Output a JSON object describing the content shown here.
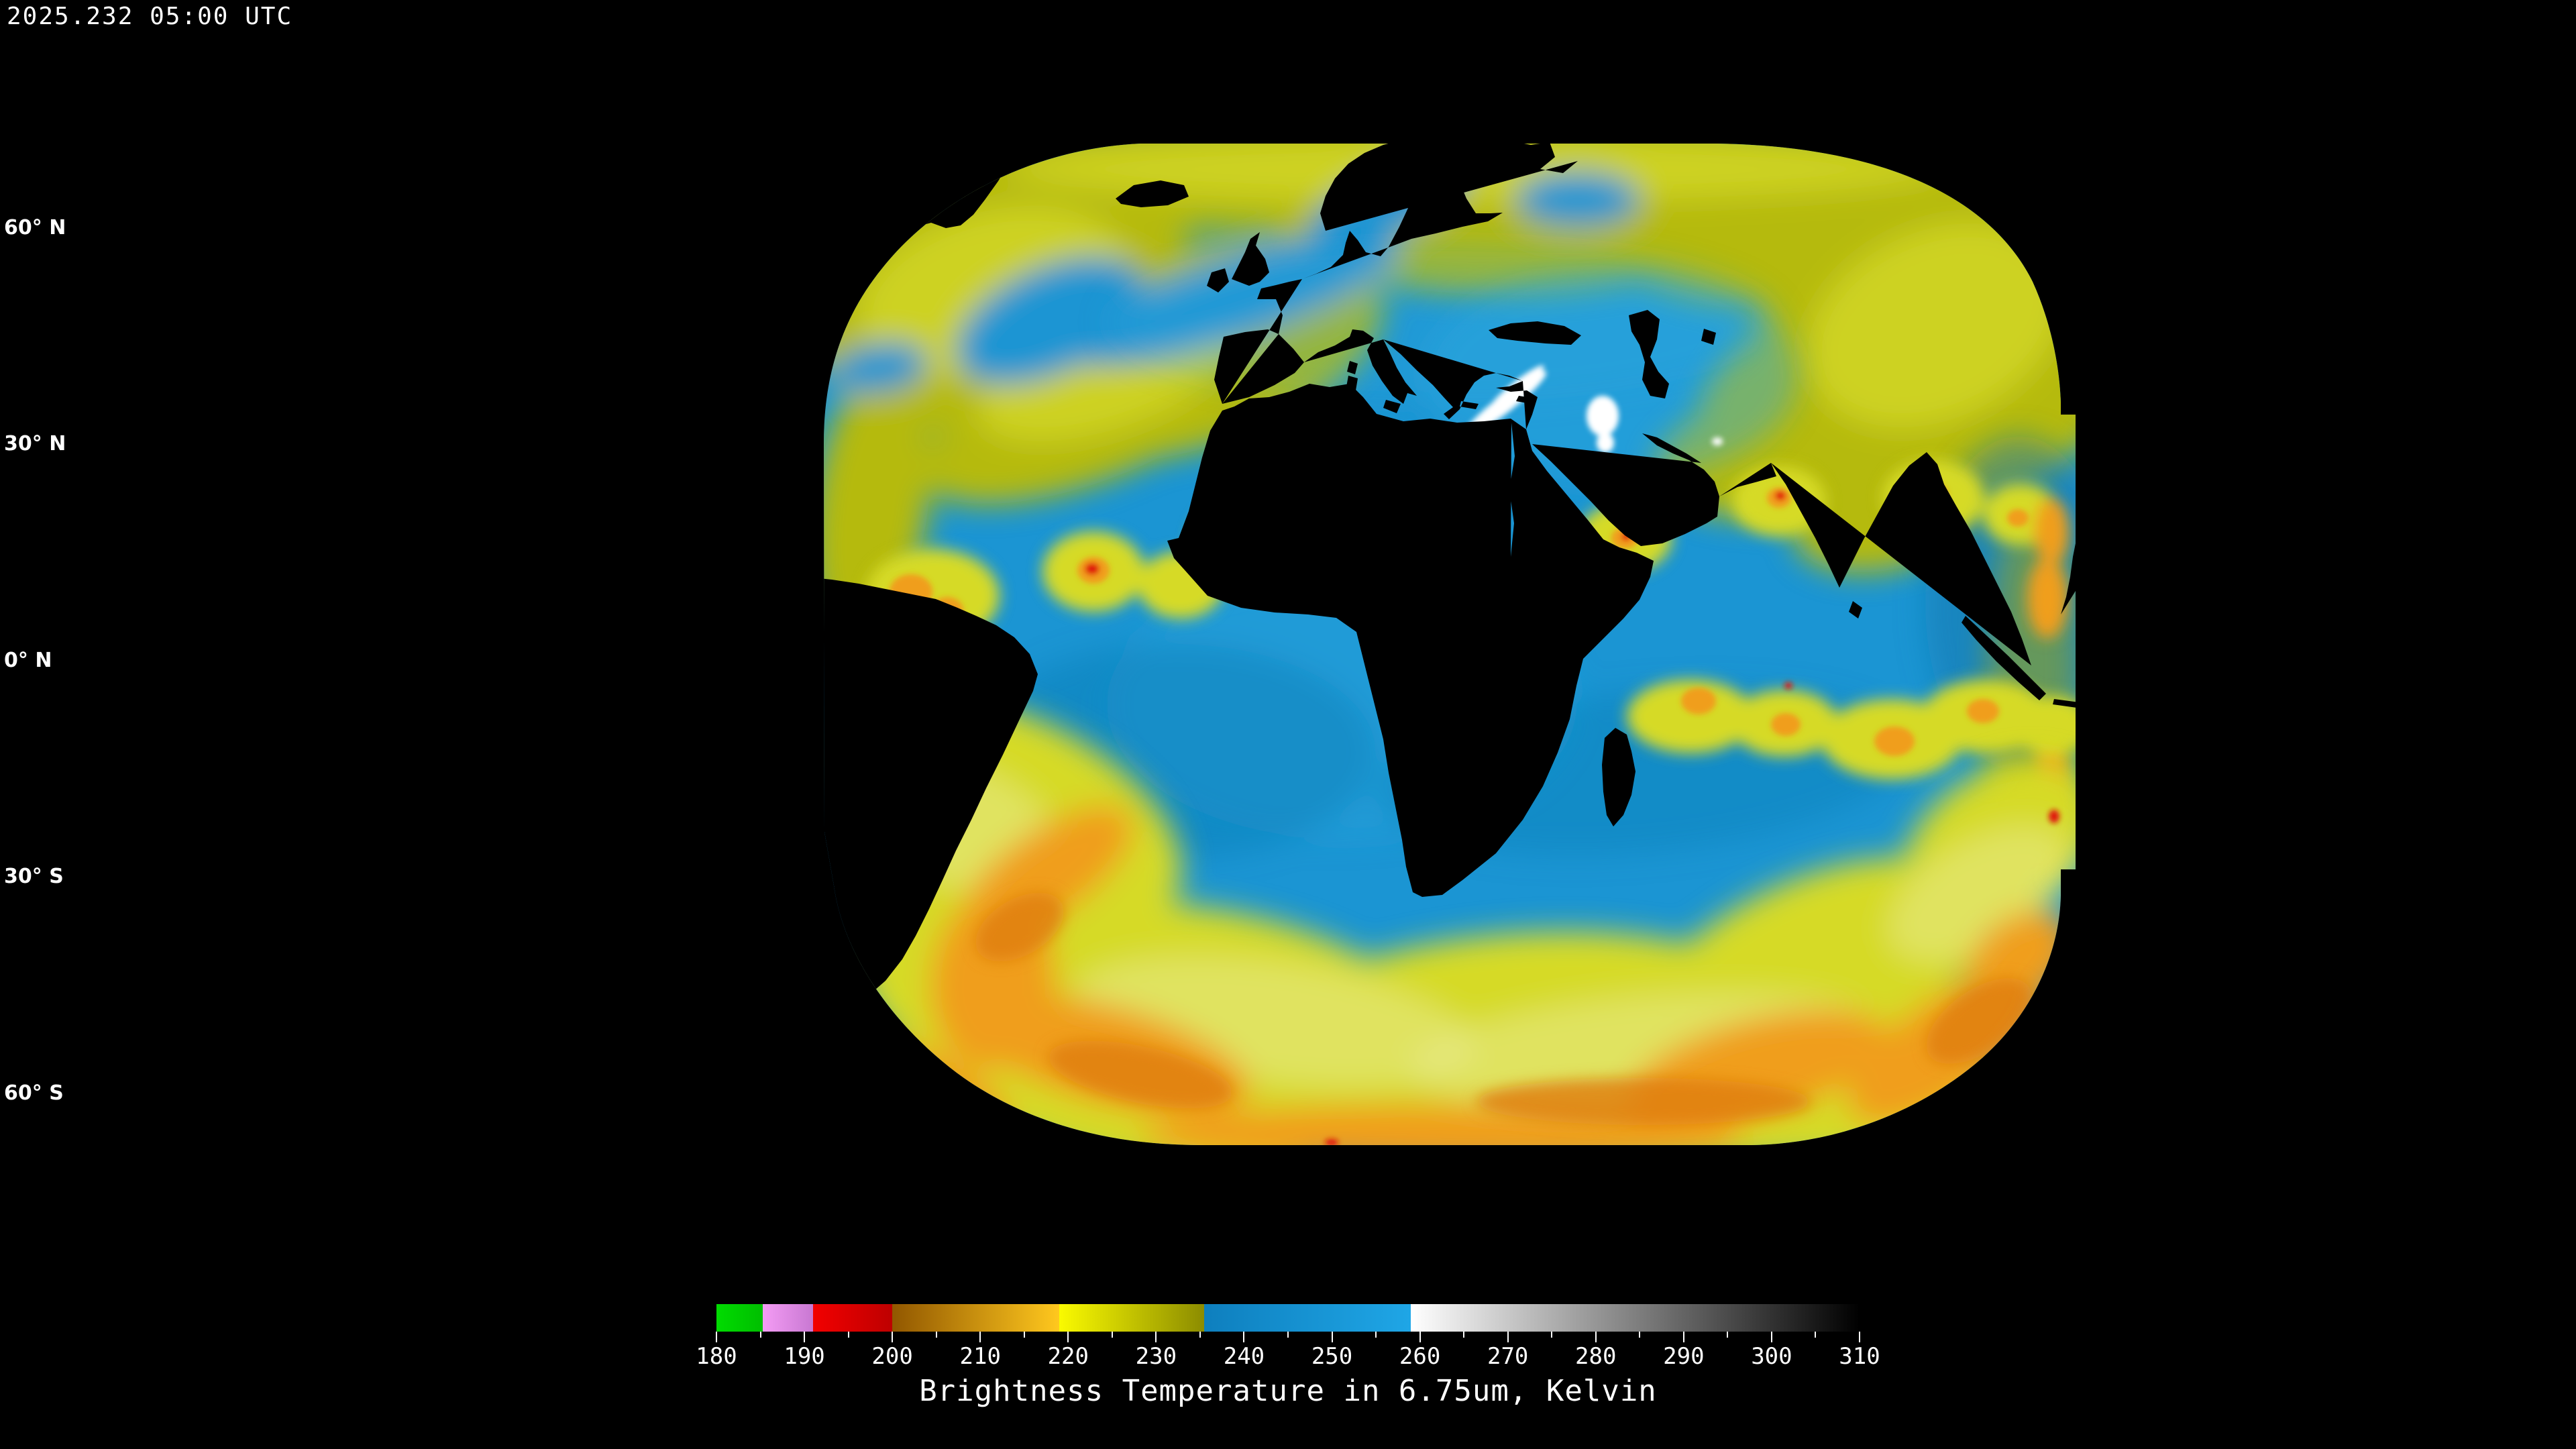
{
  "header": {
    "timestamp": "2025.232 05:00 UTC"
  },
  "map": {
    "lat_labels": [
      {
        "label": "60° N"
      },
      {
        "label": "30° N"
      },
      {
        "label": "0° N"
      },
      {
        "label": "30° S"
      },
      {
        "label": "60° S"
      }
    ],
    "graticule_lat_lines": [
      "60N",
      "30N",
      "0",
      "30S",
      "60S"
    ],
    "graticule_lon_line_count": 12
  },
  "colorbar": {
    "title": "Brightness Temperature in 6.75um, Kelvin",
    "min": 180,
    "max": 310,
    "major_ticks": [
      180,
      190,
      200,
      210,
      220,
      230,
      240,
      250,
      260,
      270,
      280,
      290,
      300,
      310
    ],
    "minor_tick_step": 5,
    "segments": [
      {
        "from": 180,
        "to": 185.3,
        "from_color": "#00DC00",
        "to_color": "#00BE00"
      },
      {
        "from": 185.3,
        "to": 191,
        "from_color": "#F49CF4",
        "to_color": "#C878D2"
      },
      {
        "from": 191,
        "to": 200,
        "from_color": "#F20000",
        "to_color": "#BE0000"
      },
      {
        "from": 200,
        "to": 219,
        "from_color": "#915700",
        "to_color": "#FFC81E"
      },
      {
        "from": 219,
        "to": 235.5,
        "from_color": "#FAFA00",
        "to_color": "#8C8C00"
      },
      {
        "from": 235.5,
        "to": 259,
        "from_color": "#0E7FBE",
        "to_color": "#1FA6E6"
      },
      {
        "from": 259,
        "to": 310,
        "from_color": "#FFFFFF",
        "to_color": "#000000"
      }
    ]
  },
  "palette": {
    "bg": "#000000",
    "text": "#FFFFFF",
    "swath_blue": "#1B95D3",
    "blue_light": "#2FA8E0",
    "blue_dark": "#0F76AC",
    "olive": "#B5BA10",
    "yellow": "#D6DA25",
    "yellow_pale": "#E6E98A",
    "orange": "#F09E1C",
    "orange_deep": "#DE7D10",
    "red": "#E01409",
    "white_cloud": "#FFFFFF",
    "coast_outside": "#FFFFFF",
    "coast_inside": "#000000"
  }
}
